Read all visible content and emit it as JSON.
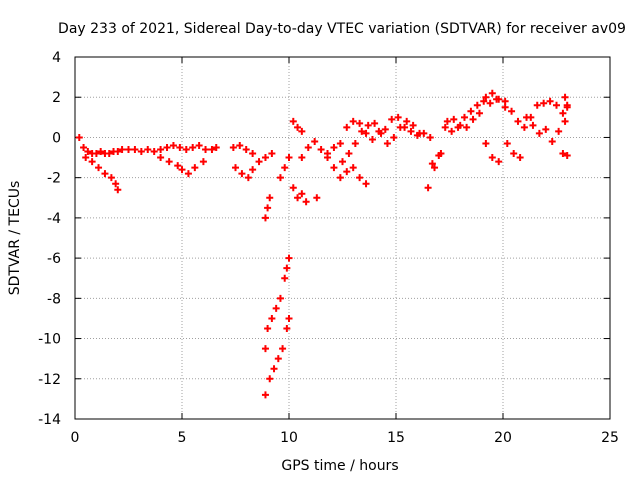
{
  "chart_data": {
    "type": "scatter",
    "title": "Day 233 of 2021, Sidereal Day-to-day VTEC variation (SDTVAR) for receiver av09",
    "xlabel": "GPS time / hours",
    "ylabel": "SDTVAR / TECUs",
    "xlim": [
      0,
      25
    ],
    "ylim": [
      -14,
      4
    ],
    "xticks": [
      0,
      5,
      10,
      15,
      20,
      25
    ],
    "yticks": [
      -14,
      -12,
      -10,
      -8,
      -6,
      -4,
      -2,
      0,
      2,
      4
    ],
    "grid": true,
    "legend": "none",
    "marker": "plus",
    "color": "#ff0000",
    "series": [
      {
        "name": "SDTVAR",
        "x": [
          0.2,
          0.4,
          0.6,
          0.8,
          1.0,
          1.2,
          1.4,
          1.6,
          1.8,
          2.0,
          2.2,
          2.5,
          2.8,
          3.1,
          3.4,
          3.7,
          4.0,
          4.3,
          4.6,
          4.9,
          5.2,
          5.5,
          5.8,
          6.1,
          6.4,
          6.6,
          0.5,
          0.8,
          1.1,
          1.4,
          1.7,
          1.9,
          2.0,
          4.0,
          4.4,
          4.8,
          5.0,
          5.3,
          5.6,
          6.0,
          7.4,
          7.7,
          8.0,
          8.3,
          8.6,
          8.9,
          9.2,
          7.5,
          7.8,
          8.1,
          8.3,
          8.9,
          9.0,
          9.1,
          8.9,
          9.0,
          9.2,
          9.4,
          9.6,
          9.8,
          9.9,
          10.0,
          8.9,
          9.1,
          9.3,
          9.5,
          9.7,
          9.9,
          10.0,
          9.6,
          9.8,
          10.0,
          10.2,
          10.4,
          10.6,
          10.8,
          10.2,
          10.4,
          10.6,
          11.3,
          10.6,
          10.9,
          11.2,
          11.5,
          11.8,
          12.1,
          12.4,
          12.7,
          13.0,
          13.3,
          13.6,
          11.8,
          12.1,
          12.4,
          12.7,
          13.0,
          13.3,
          13.6,
          13.9,
          14.2,
          14.5,
          14.8,
          15.1,
          15.4,
          15.7,
          16.0,
          16.3,
          16.6,
          12.5,
          12.8,
          13.1,
          13.4,
          13.7,
          14.0,
          14.3,
          14.6,
          14.9,
          15.2,
          15.5,
          15.8,
          16.1,
          16.5,
          16.8,
          17.1,
          17.4,
          17.7,
          18.0,
          18.3,
          18.6,
          18.9,
          19.2,
          19.5,
          19.8,
          20.1,
          16.7,
          17.0,
          17.3,
          17.6,
          17.9,
          18.2,
          18.5,
          18.8,
          19.1,
          19.4,
          19.7,
          19.2,
          19.5,
          19.8,
          20.1,
          20.4,
          20.7,
          21.0,
          21.3,
          21.6,
          21.9,
          22.2,
          22.5,
          22.8,
          23.0,
          20.2,
          20.5,
          20.8,
          21.1,
          21.4,
          21.7,
          22.0,
          22.3,
          22.6,
          22.9,
          22.8,
          23.0,
          22.9,
          23.0
        ],
        "y": [
          0.0,
          -0.5,
          -0.7,
          -0.8,
          -0.8,
          -0.7,
          -0.8,
          -0.8,
          -0.7,
          -0.7,
          -0.6,
          -0.6,
          -0.6,
          -0.7,
          -0.6,
          -0.7,
          -0.6,
          -0.5,
          -0.4,
          -0.5,
          -0.6,
          -0.5,
          -0.4,
          -0.6,
          -0.6,
          -0.5,
          -1.0,
          -1.2,
          -1.5,
          -1.8,
          -2.0,
          -2.3,
          -2.6,
          -1.0,
          -1.2,
          -1.4,
          -1.6,
          -1.8,
          -1.5,
          -1.2,
          -0.5,
          -0.4,
          -0.6,
          -0.8,
          -1.2,
          -1.0,
          -0.8,
          -1.5,
          -1.8,
          -2.0,
          -1.6,
          -4.0,
          -3.5,
          -3.0,
          -10.5,
          -9.5,
          -9.0,
          -8.5,
          -8.0,
          -7.0,
          -6.5,
          -6.0,
          -12.8,
          -12.0,
          -11.5,
          -11.0,
          -10.5,
          -9.5,
          -9.0,
          -2.0,
          -1.5,
          -1.0,
          -2.5,
          -3.0,
          -2.8,
          -3.2,
          0.8,
          0.5,
          0.3,
          -3.0,
          -1.0,
          -0.5,
          -0.2,
          -0.6,
          -1.0,
          -1.5,
          -2.0,
          -1.7,
          -1.5,
          -2.0,
          -2.3,
          -0.8,
          -0.5,
          -0.3,
          0.5,
          0.8,
          0.7,
          0.2,
          -0.1,
          0.3,
          0.4,
          0.9,
          1.0,
          0.5,
          0.3,
          0.1,
          0.2,
          0.0,
          -1.2,
          -0.8,
          -0.3,
          0.3,
          0.6,
          0.7,
          0.2,
          -0.3,
          0.0,
          0.5,
          0.8,
          0.6,
          0.2,
          -2.5,
          -1.5,
          -0.8,
          0.8,
          0.9,
          0.6,
          0.5,
          0.9,
          1.2,
          2.0,
          2.2,
          1.9,
          1.8,
          -1.3,
          -0.9,
          0.5,
          0.3,
          0.5,
          1.0,
          1.3,
          1.6,
          1.8,
          1.7,
          1.9,
          -0.3,
          -1.0,
          -1.2,
          1.5,
          1.3,
          0.8,
          0.5,
          1.0,
          1.6,
          1.7,
          1.8,
          1.6,
          1.2,
          1.5,
          -0.3,
          -0.8,
          -1.0,
          1.0,
          0.6,
          0.2,
          0.4,
          -0.2,
          0.3,
          0.8,
          -0.8,
          -0.9,
          2.0,
          1.6
        ]
      }
    ]
  }
}
